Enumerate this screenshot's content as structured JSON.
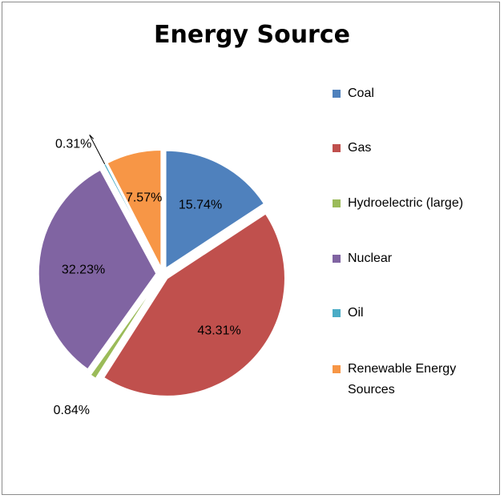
{
  "chart_data": {
    "type": "pie",
    "title": "Energy Source",
    "categories": [
      "Coal",
      "Gas",
      "Hydroelectric (large)",
      "Nuclear",
      "Oil",
      "Renewable Energy Sources"
    ],
    "values": [
      15.74,
      43.31,
      0.84,
      32.23,
      0.31,
      7.57
    ],
    "data_labels": [
      "15.74%",
      "43.31%",
      "0.84%",
      "32.23%",
      "0.31%",
      "7.57%"
    ],
    "colors": [
      "#4F81BD",
      "#C0504D",
      "#9BBB59",
      "#8064A2",
      "#4BACC6",
      "#F79646"
    ],
    "legend_position": "right",
    "exploded": true
  },
  "legend": {
    "items": [
      {
        "label": "Coal",
        "color": "#4F81BD"
      },
      {
        "label": "Gas",
        "color": "#C0504D"
      },
      {
        "label": "Hydroelectric (large)",
        "color": "#9BBB59"
      },
      {
        "label": "Nuclear",
        "color": "#8064A2"
      },
      {
        "label": "Oil",
        "color": "#4BACC6"
      },
      {
        "label": "Renewable Energy Sources",
        "color": "#F79646"
      }
    ]
  }
}
